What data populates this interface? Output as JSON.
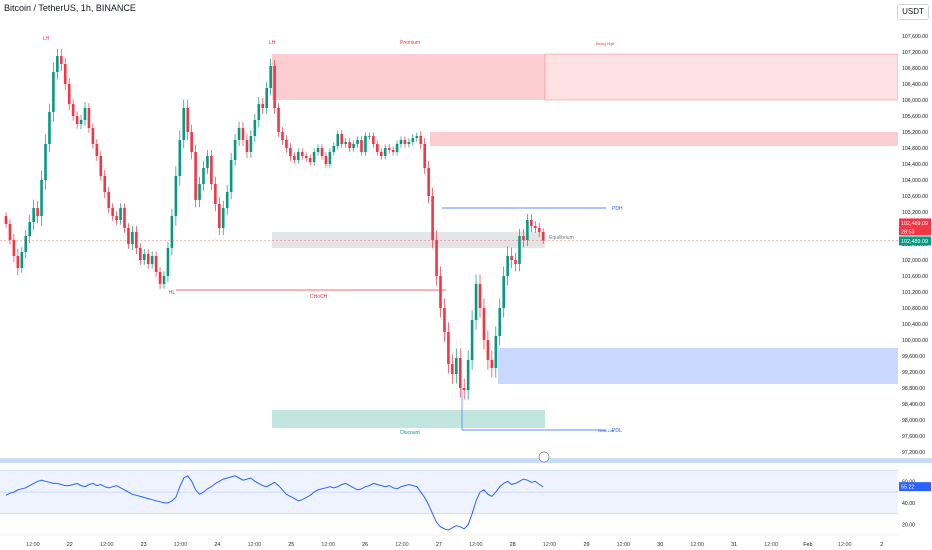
{
  "header": {
    "title": "Bitcoin / TetherUS, 1h, BINANCE",
    "currency_label": "USDT"
  },
  "chart_data": {
    "type": "candlestick",
    "symbol": "BTCUSDT",
    "price_axis": {
      "ylim": [
        97100,
        107950
      ],
      "ticks": [
        "107,600.00",
        "107,200.00",
        "106,800.00",
        "106,400.00",
        "106,000.00",
        "105,600.00",
        "105,200.00",
        "104,800.00",
        "104,400.00",
        "104,000.00",
        "103,600.00",
        "103,200.00",
        "102,800.00",
        "102,400.00",
        "102,000.00",
        "101,600.00",
        "101,200.00",
        "100,800.00",
        "100,400.00",
        "100,000.00",
        "99,600.00",
        "99,200.00",
        "98,800.00",
        "98,400.00",
        "98,000.00",
        "97,600.00",
        "97,200.00"
      ],
      "tick_values": [
        107600,
        107200,
        106800,
        106400,
        106000,
        105600,
        105200,
        104800,
        104400,
        104000,
        103600,
        103200,
        102800,
        102400,
        102000,
        101600,
        101200,
        100800,
        100400,
        100000,
        99600,
        99200,
        98800,
        98400,
        98000,
        97600,
        97200
      ]
    },
    "time_axis": {
      "labels": [
        "12:00",
        "22",
        "12:00",
        "23",
        "12:00",
        "24",
        "12:00",
        "25",
        "12:00",
        "26",
        "12:00",
        "27",
        "12:00",
        "28",
        "12:00",
        "29",
        "12:00",
        "30",
        "12:00",
        "31",
        "12:00",
        "Feb",
        "12:00",
        "2"
      ],
      "x_hours": [
        12,
        24,
        36,
        48,
        60,
        72,
        84,
        96,
        108,
        120,
        132,
        144,
        156,
        168,
        180,
        192,
        204,
        216,
        228,
        240,
        252,
        264,
        276,
        288
      ]
    },
    "price_badges": {
      "last_price": "102,489.09",
      "countdown": "28:53",
      "second_price": "102,489.09"
    },
    "closes": [
      102900,
      102500,
      102100,
      101800,
      102200,
      102600,
      102950,
      103300,
      103100,
      104000,
      104900,
      105700,
      106700,
      107100,
      106900,
      106400,
      105900,
      105600,
      105400,
      105500,
      105800,
      105300,
      104900,
      104600,
      104100,
      103700,
      103300,
      103100,
      103000,
      103300,
      102800,
      102400,
      102700,
      102300,
      102000,
      102150,
      101900,
      102100,
      101700,
      101400,
      101600,
      102300,
      103100,
      104100,
      105000,
      105800,
      105200,
      104700,
      103500,
      103900,
      104300,
      104600,
      103900,
      103400,
      102800,
      103300,
      103700,
      104500,
      105000,
      105300,
      105000,
      104700,
      105100,
      105500,
      105900,
      105800,
      106300,
      106850,
      105800,
      105200,
      105000,
      104800,
      104600,
      104500,
      104700,
      104600,
      104550,
      104450,
      104700,
      104800,
      104600,
      104400,
      104700,
      104850,
      105150,
      104900,
      104950,
      104800,
      104900,
      105000,
      104700,
      105100,
      105100,
      104900,
      104700,
      104600,
      104800,
      104750,
      104700,
      104900,
      105000,
      104900,
      104950,
      105050,
      105100,
      104900,
      104300,
      103600,
      102500,
      101600,
      100800,
      100200,
      99400,
      99150,
      99550,
      98800,
      98750,
      99500,
      100500,
      101400,
      100800,
      100000,
      99500,
      99300,
      100100,
      100800,
      101600,
      102100,
      102000,
      101900,
      102600,
      102500,
      103000,
      102850,
      102800,
      102700,
      102489
    ],
    "volatility": [
      150,
      200,
      250,
      300,
      200,
      250,
      300,
      350,
      300,
      400,
      400,
      350,
      400,
      300,
      300,
      250,
      250,
      200,
      200,
      220,
      250,
      200,
      200,
      200,
      200,
      250,
      200,
      200,
      200,
      200,
      200,
      200,
      250,
      250,
      200,
      200,
      200,
      200,
      200,
      200,
      200,
      250,
      300,
      400,
      400,
      350,
      350,
      300,
      300,
      300,
      300,
      250,
      250,
      300,
      300,
      300,
      300,
      300,
      250,
      250,
      250,
      250,
      250,
      250,
      300,
      250,
      250,
      300,
      250,
      200,
      200,
      200,
      200,
      150,
      150,
      150,
      150,
      150,
      150,
      150,
      150,
      150,
      150,
      150,
      150,
      150,
      150,
      150,
      150,
      150,
      150,
      150,
      150,
      150,
      150,
      150,
      150,
      150,
      150,
      150,
      150,
      150,
      150,
      150,
      150,
      200,
      250,
      300,
      350,
      400,
      400,
      400,
      400,
      400,
      400,
      400,
      400,
      400,
      400,
      400,
      400,
      400,
      400,
      400,
      400,
      400,
      400,
      400,
      350,
      300,
      300,
      300,
      250,
      250,
      200,
      200,
      150
    ],
    "zones": [
      {
        "label": "Premium",
        "y_top": 107150,
        "y_bottom": 106000,
        "color": "#f23645"
      },
      {
        "label": "",
        "y_top": 105200,
        "y_bottom": 104850,
        "color": "#f23645"
      },
      {
        "label": "Equilibrium",
        "y_top": 102700,
        "y_bottom": 102300,
        "color": "#9598a1"
      },
      {
        "label": "",
        "y_top": 99800,
        "y_bottom": 98900,
        "color": "#2962ff"
      },
      {
        "label": "Discount",
        "y_top": 98250,
        "y_bottom": 97800,
        "color": "#089981"
      }
    ],
    "levels": [
      {
        "label": "PDH",
        "value": 103300,
        "color": "#2962ff"
      },
      {
        "label": "PDL",
        "value": 97750,
        "color": "#2962ff"
      },
      {
        "label": "CHoCH",
        "value": 101250,
        "color": "#f23645"
      }
    ],
    "annotations": [
      {
        "text": "LH",
        "color": "#f23645"
      },
      {
        "text": "LH",
        "color": "#f23645"
      },
      {
        "text": "HL",
        "color": "#089981"
      },
      {
        "text": "CHoCH",
        "color": "#f23645"
      },
      {
        "text": "Strong High",
        "color": "#f23645"
      },
      {
        "text": "Weak Low",
        "color": "#2962ff"
      }
    ],
    "rsi": {
      "last_value": "55.22",
      "ticks": [
        "60.00",
        "40.00",
        "20.00"
      ],
      "tick_values": [
        60,
        40,
        20
      ],
      "values": [
        47,
        49,
        50,
        52,
        53,
        54,
        56,
        58,
        60,
        61,
        60,
        59,
        58,
        58,
        57,
        56,
        56,
        57,
        58,
        56,
        55,
        57,
        58,
        56,
        57,
        55,
        54,
        55,
        56,
        54,
        52,
        50,
        48,
        47,
        46,
        45,
        44,
        43,
        42,
        41,
        40,
        40,
        42,
        45,
        55,
        63,
        65,
        60,
        52,
        48,
        50,
        53,
        55,
        58,
        60,
        62,
        63,
        64,
        65,
        63,
        61,
        62,
        63,
        60,
        58,
        56,
        55,
        57,
        59,
        56,
        52,
        48,
        46,
        44,
        42,
        43,
        45,
        47,
        50,
        52,
        53,
        54,
        55,
        54,
        55,
        57,
        58,
        56,
        54,
        52,
        53,
        55,
        56,
        58,
        57,
        56,
        55,
        56,
        54,
        53,
        55,
        56,
        57,
        56,
        55,
        50,
        45,
        38,
        30,
        22,
        18,
        16,
        15,
        17,
        19,
        18,
        16,
        20,
        30,
        42,
        50,
        52,
        48,
        46,
        50,
        55,
        58,
        60,
        57,
        58,
        60,
        62,
        61,
        59,
        60,
        57,
        55
      ]
    }
  }
}
